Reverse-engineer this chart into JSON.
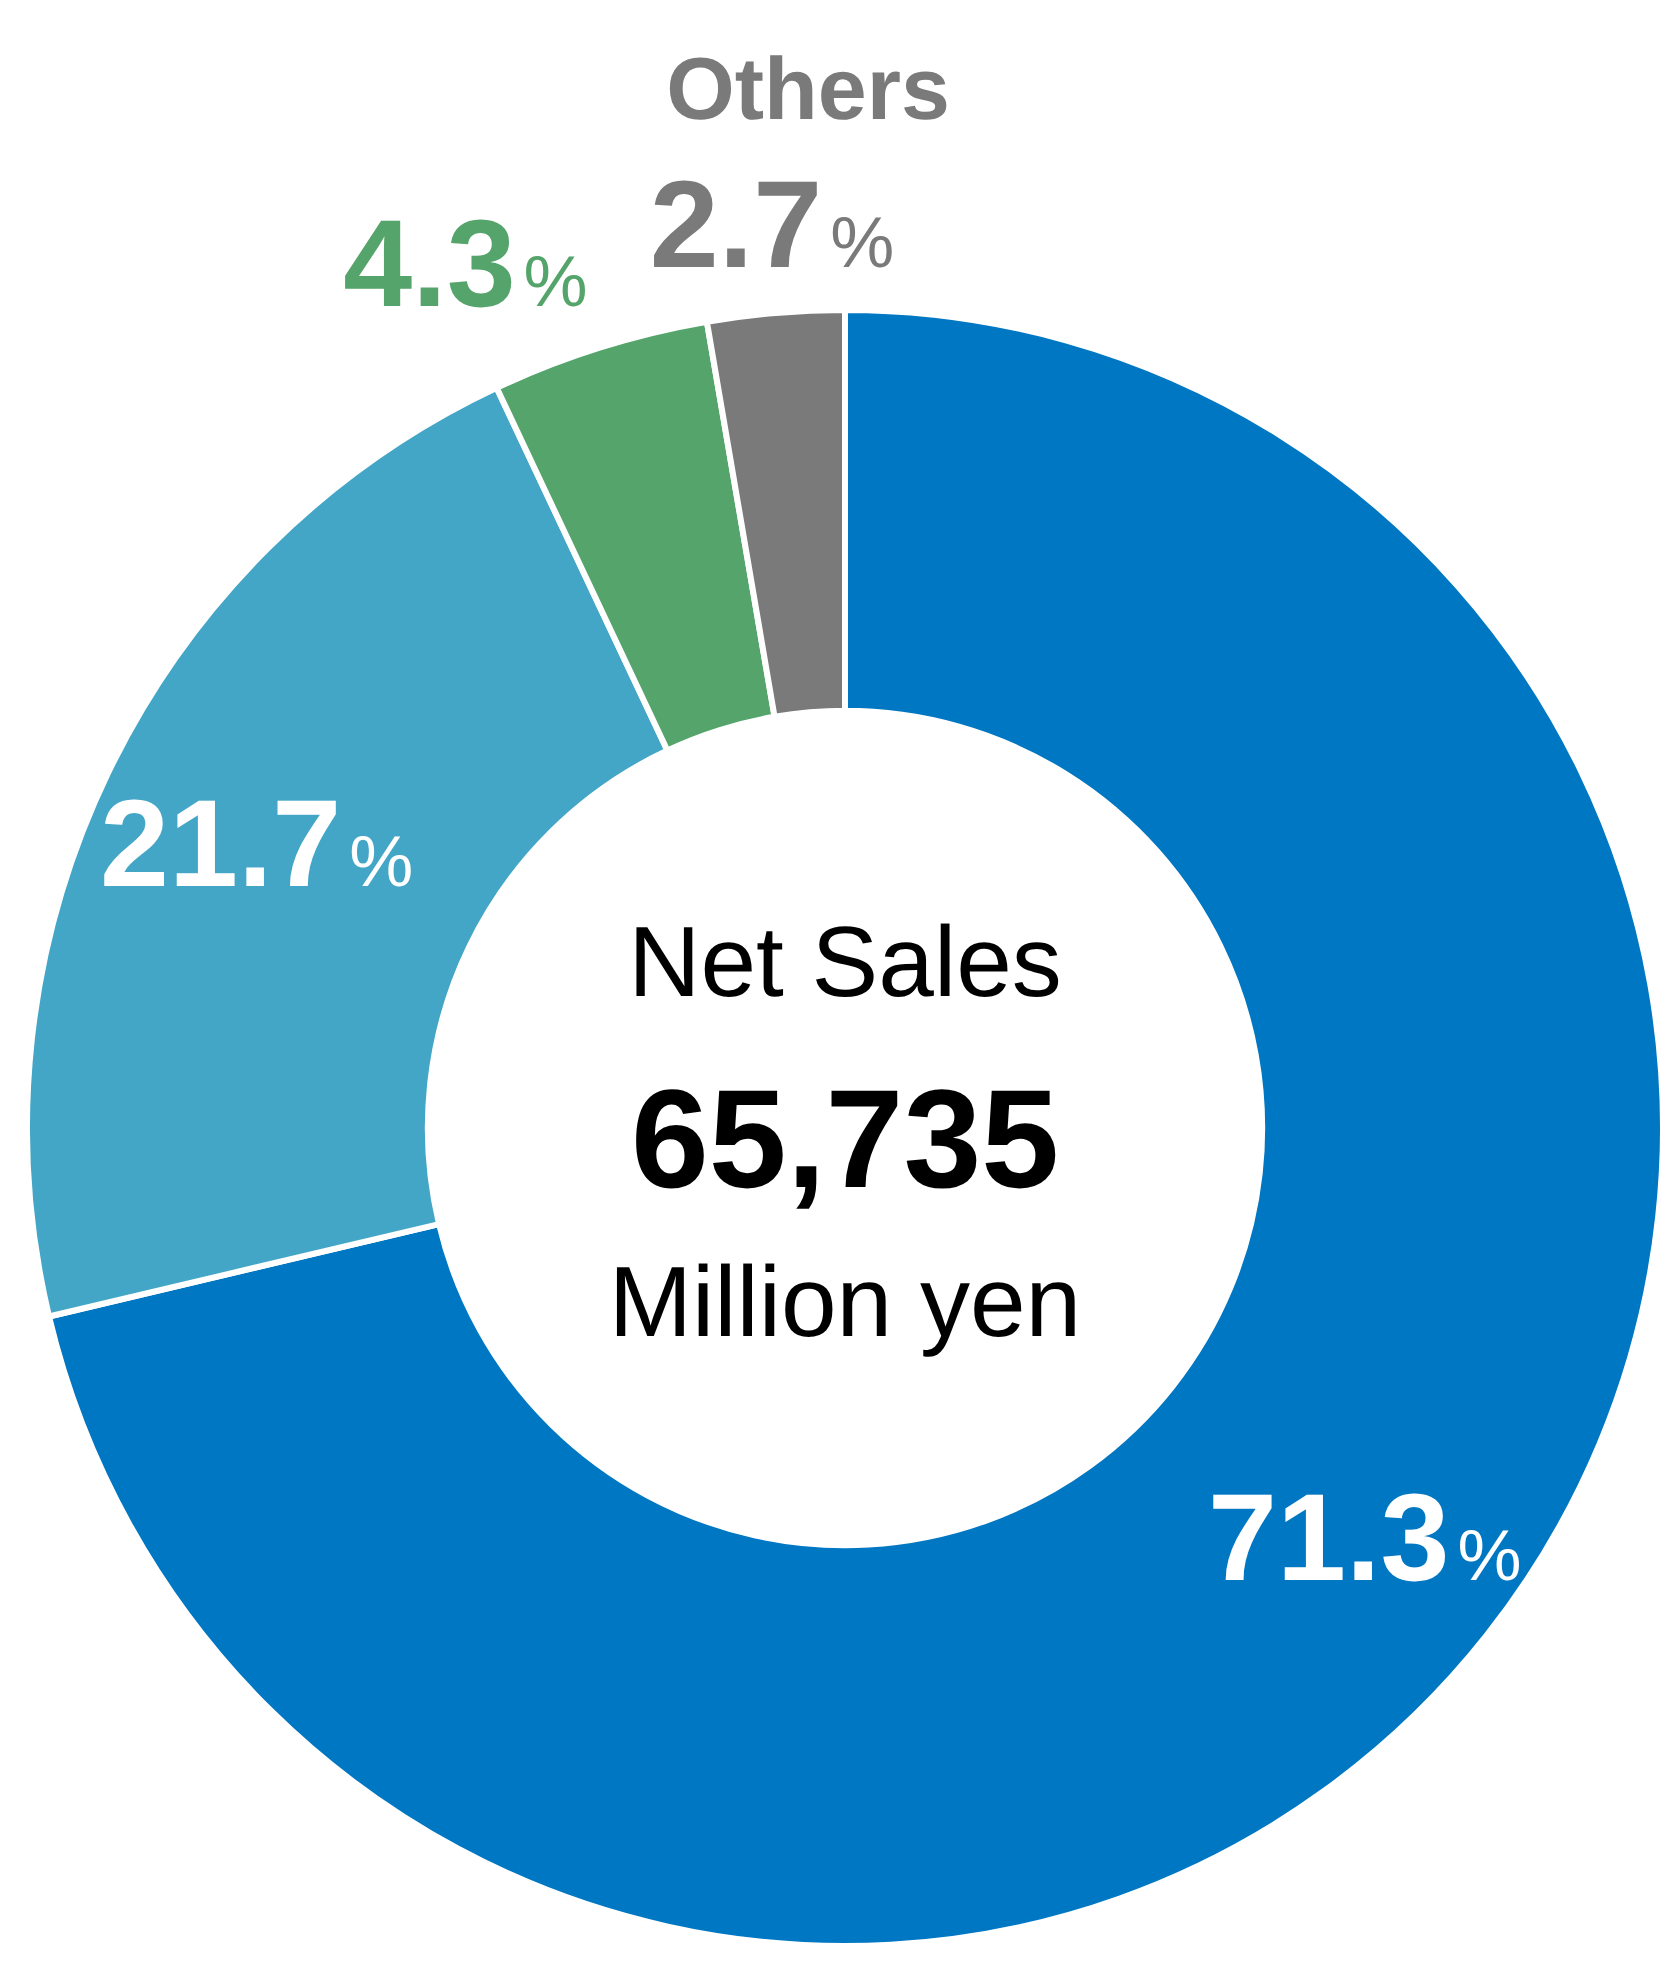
{
  "chart_data": {
    "type": "donut",
    "categories": [
      null,
      null,
      null,
      "Others"
    ],
    "values": [
      71.3,
      21.7,
      4.3,
      2.7
    ],
    "colors": [
      "#0077c2",
      "#44a6c6",
      "#55a46b",
      "#7a7a7a"
    ],
    "value_labels": [
      "71.3%",
      "21.7%",
      "4.3%",
      "2.7%"
    ],
    "legend": false,
    "annotations": [
      "Net Sales",
      "65,735",
      "Million yen"
    ]
  }
}
